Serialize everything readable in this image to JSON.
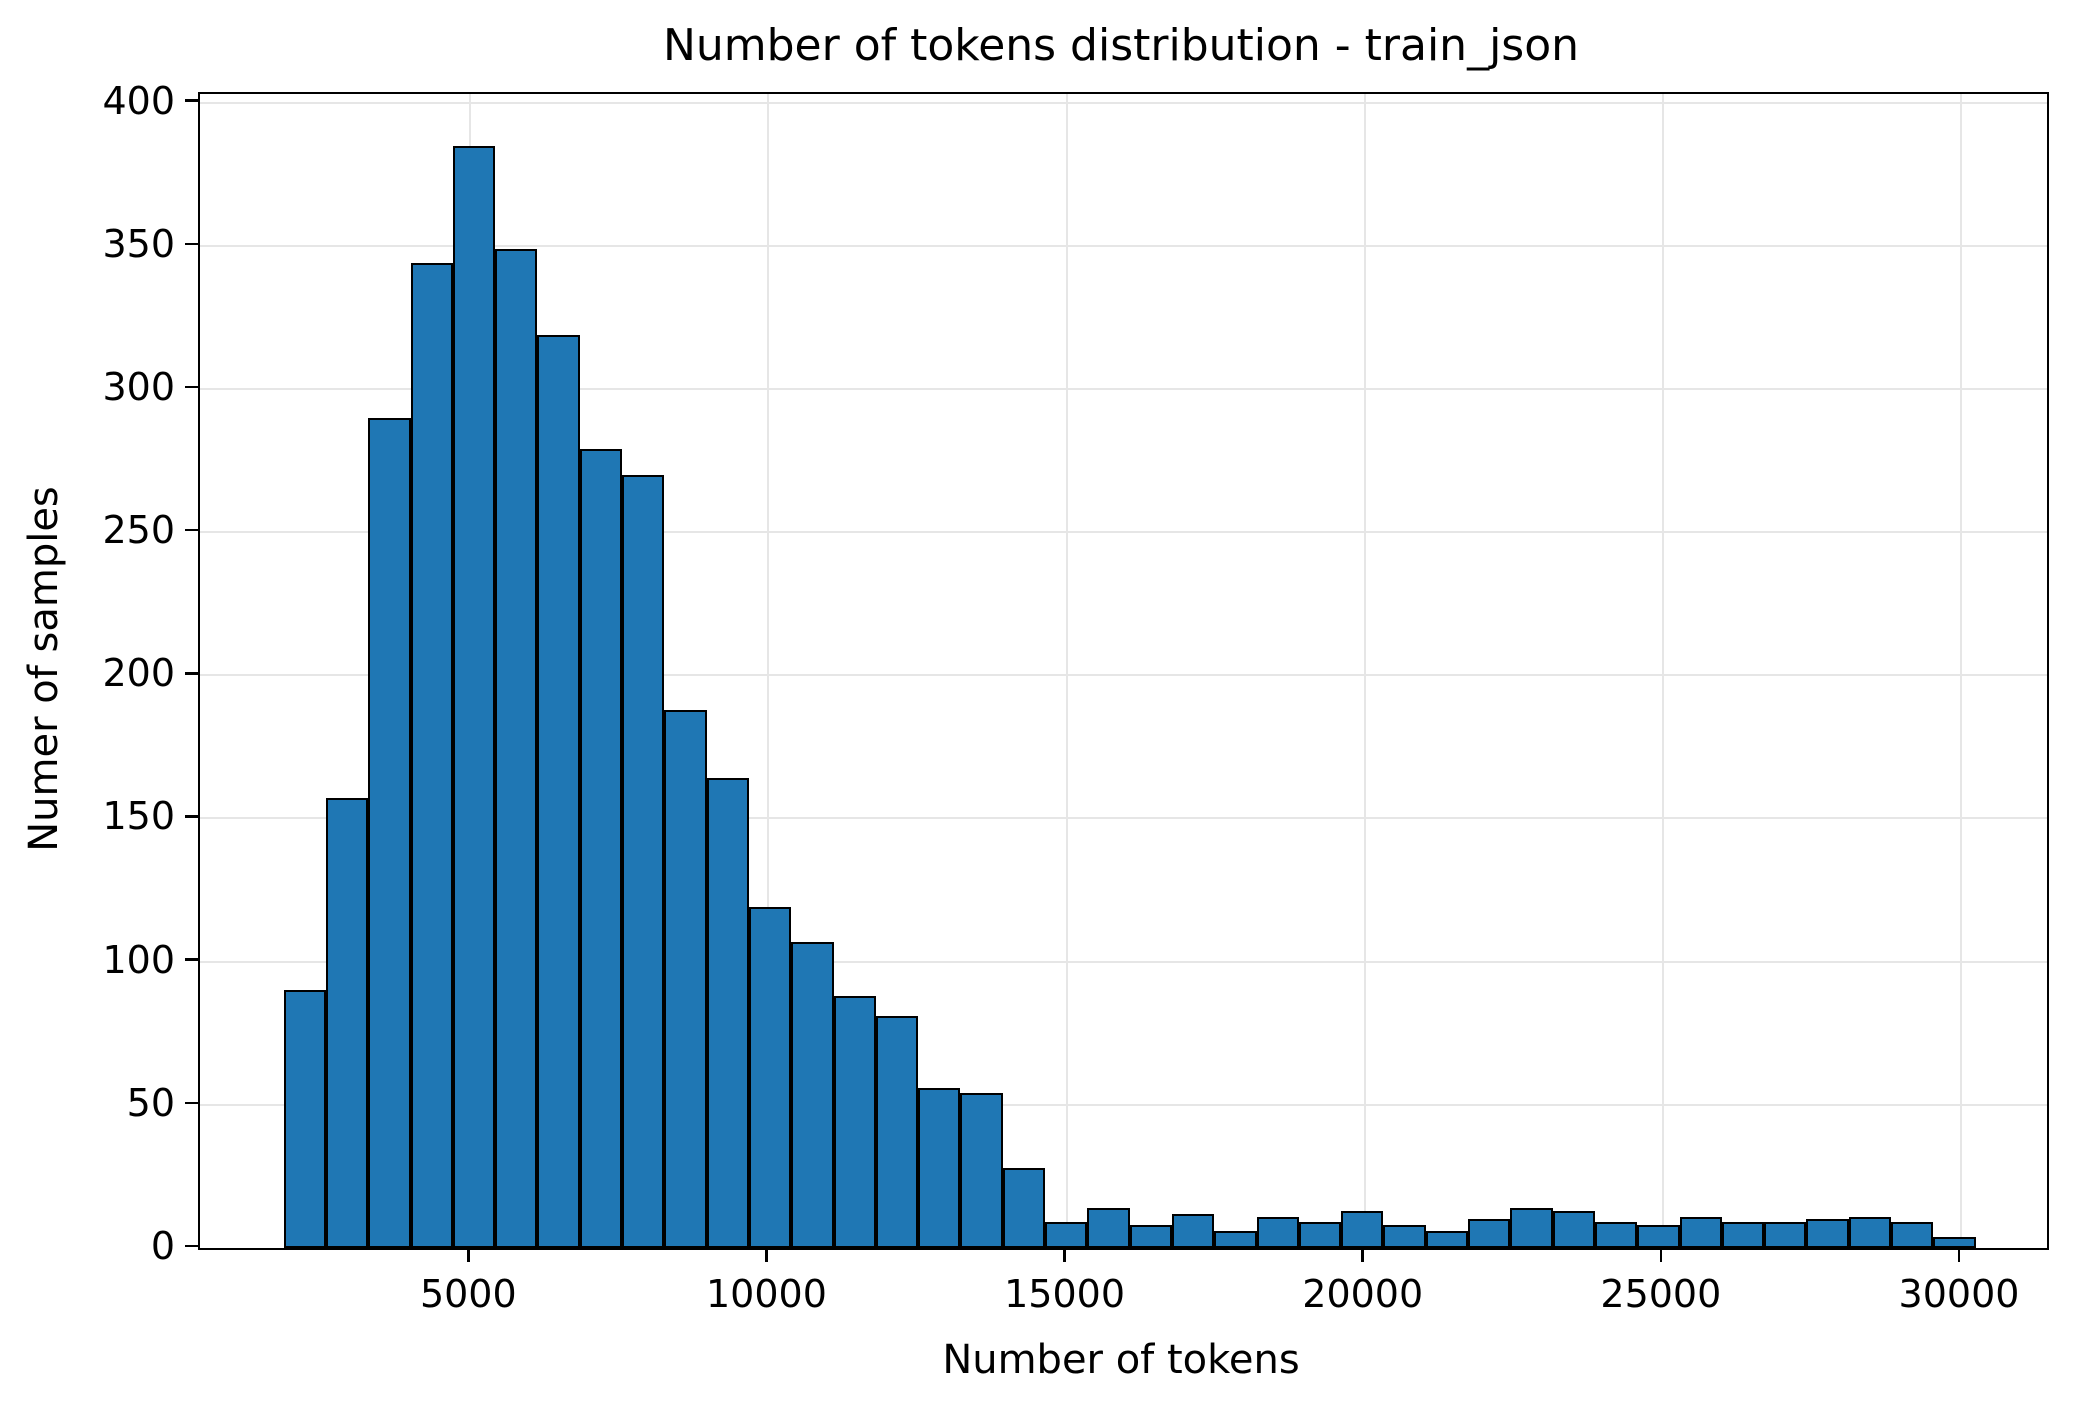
{
  "chart_data": {
    "type": "bar",
    "subtype": "histogram",
    "title": "Number of tokens distribution - train_json",
    "xlabel": "Number of tokens",
    "ylabel": "Numer of samples",
    "bins": {
      "start": 1870,
      "width": 709.4,
      "count": 40
    },
    "values": [
      90,
      157,
      290,
      344,
      385,
      349,
      319,
      279,
      270,
      188,
      164,
      119,
      107,
      88,
      81,
      56,
      54,
      28,
      9,
      14,
      8,
      12,
      6,
      11,
      9,
      13,
      8,
      6,
      10,
      14,
      13,
      9,
      8,
      11,
      9,
      9,
      10,
      11,
      9,
      4
    ],
    "x_ticks": [
      5000,
      10000,
      15000,
      20000,
      25000,
      30000
    ],
    "y_ticks": [
      0,
      50,
      100,
      150,
      200,
      250,
      300,
      350,
      400
    ],
    "xlim": [
      467,
      31442
    ],
    "ylim": [
      0,
      403
    ],
    "grid": true,
    "legend": "none",
    "bar_color": "#1f77b4",
    "bar_edge_color": "#000000",
    "grid_color": "#e6e6e6",
    "background_color": "#ffffff",
    "text_color": "#000000"
  }
}
